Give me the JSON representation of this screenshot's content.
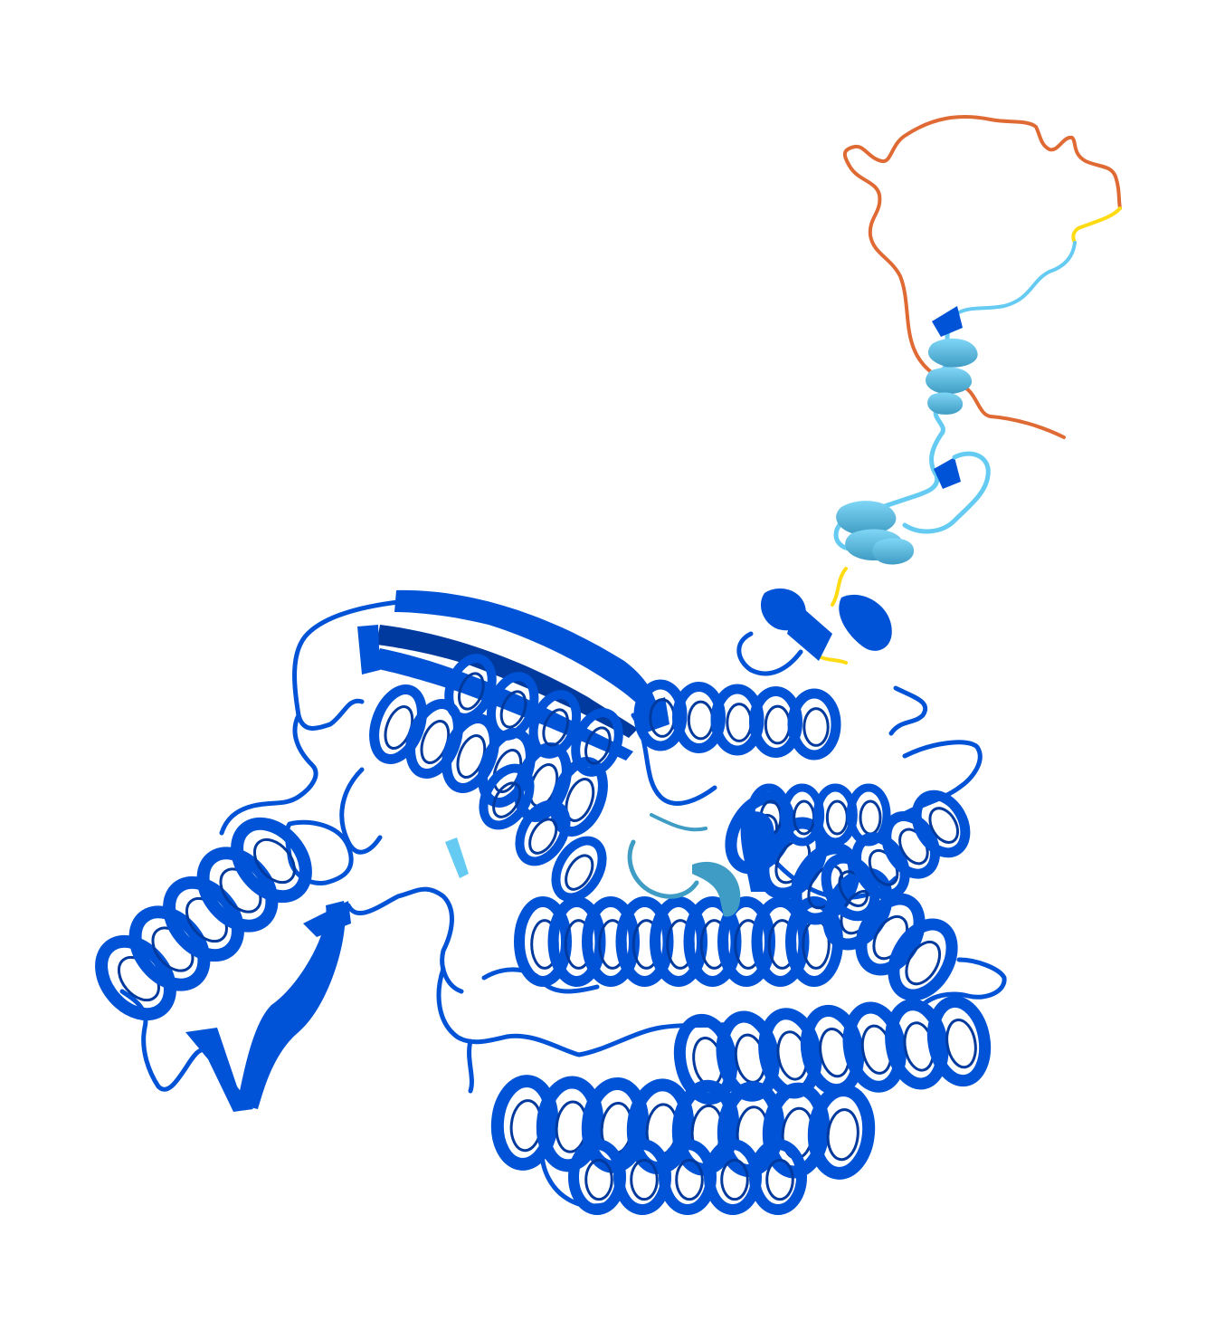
{
  "image": {
    "subject": "protein-structure-cartoon",
    "colors": {
      "very_high_confidence": "#0053d6",
      "very_high_dark": "#003a9e",
      "confident": "#65cbf3",
      "confident_dark": "#3f9cc4",
      "low": "#ffdb13",
      "very_low": "#ff7d45",
      "very_low_dark": "#d85a2a",
      "background": "#ffffff"
    }
  }
}
